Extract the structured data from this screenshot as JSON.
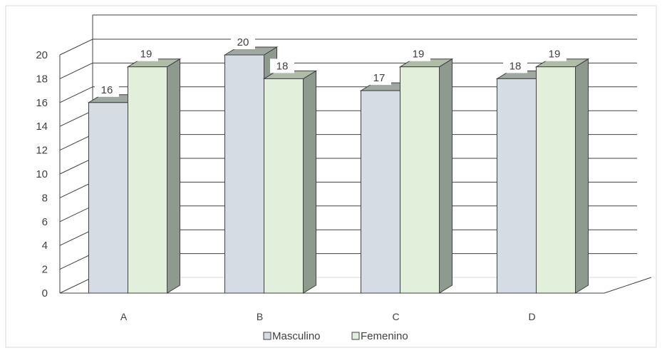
{
  "chart_data": {
    "type": "bar",
    "title": "",
    "xlabel": "",
    "ylabel": "",
    "categories": [
      "A",
      "B",
      "C",
      "D"
    ],
    "series": [
      {
        "name": "Masculino",
        "values": [
          16,
          20,
          17,
          18
        ],
        "color": "#D6DCE4",
        "side_color": "#8E9A8E",
        "top_color": "#9EA8A0"
      },
      {
        "name": "Femenino",
        "values": [
          19,
          18,
          19,
          19
        ],
        "color": "#E2EFDA",
        "side_color": "#8E9A8E",
        "top_color": "#AEBCA8"
      }
    ],
    "ylim": [
      0,
      20
    ],
    "yticks": [
      "0",
      "2",
      "4",
      "6",
      "8",
      "10",
      "12",
      "14",
      "16",
      "18",
      "20"
    ],
    "grid": true,
    "legend_position": "bottom",
    "style": "3d-column"
  }
}
